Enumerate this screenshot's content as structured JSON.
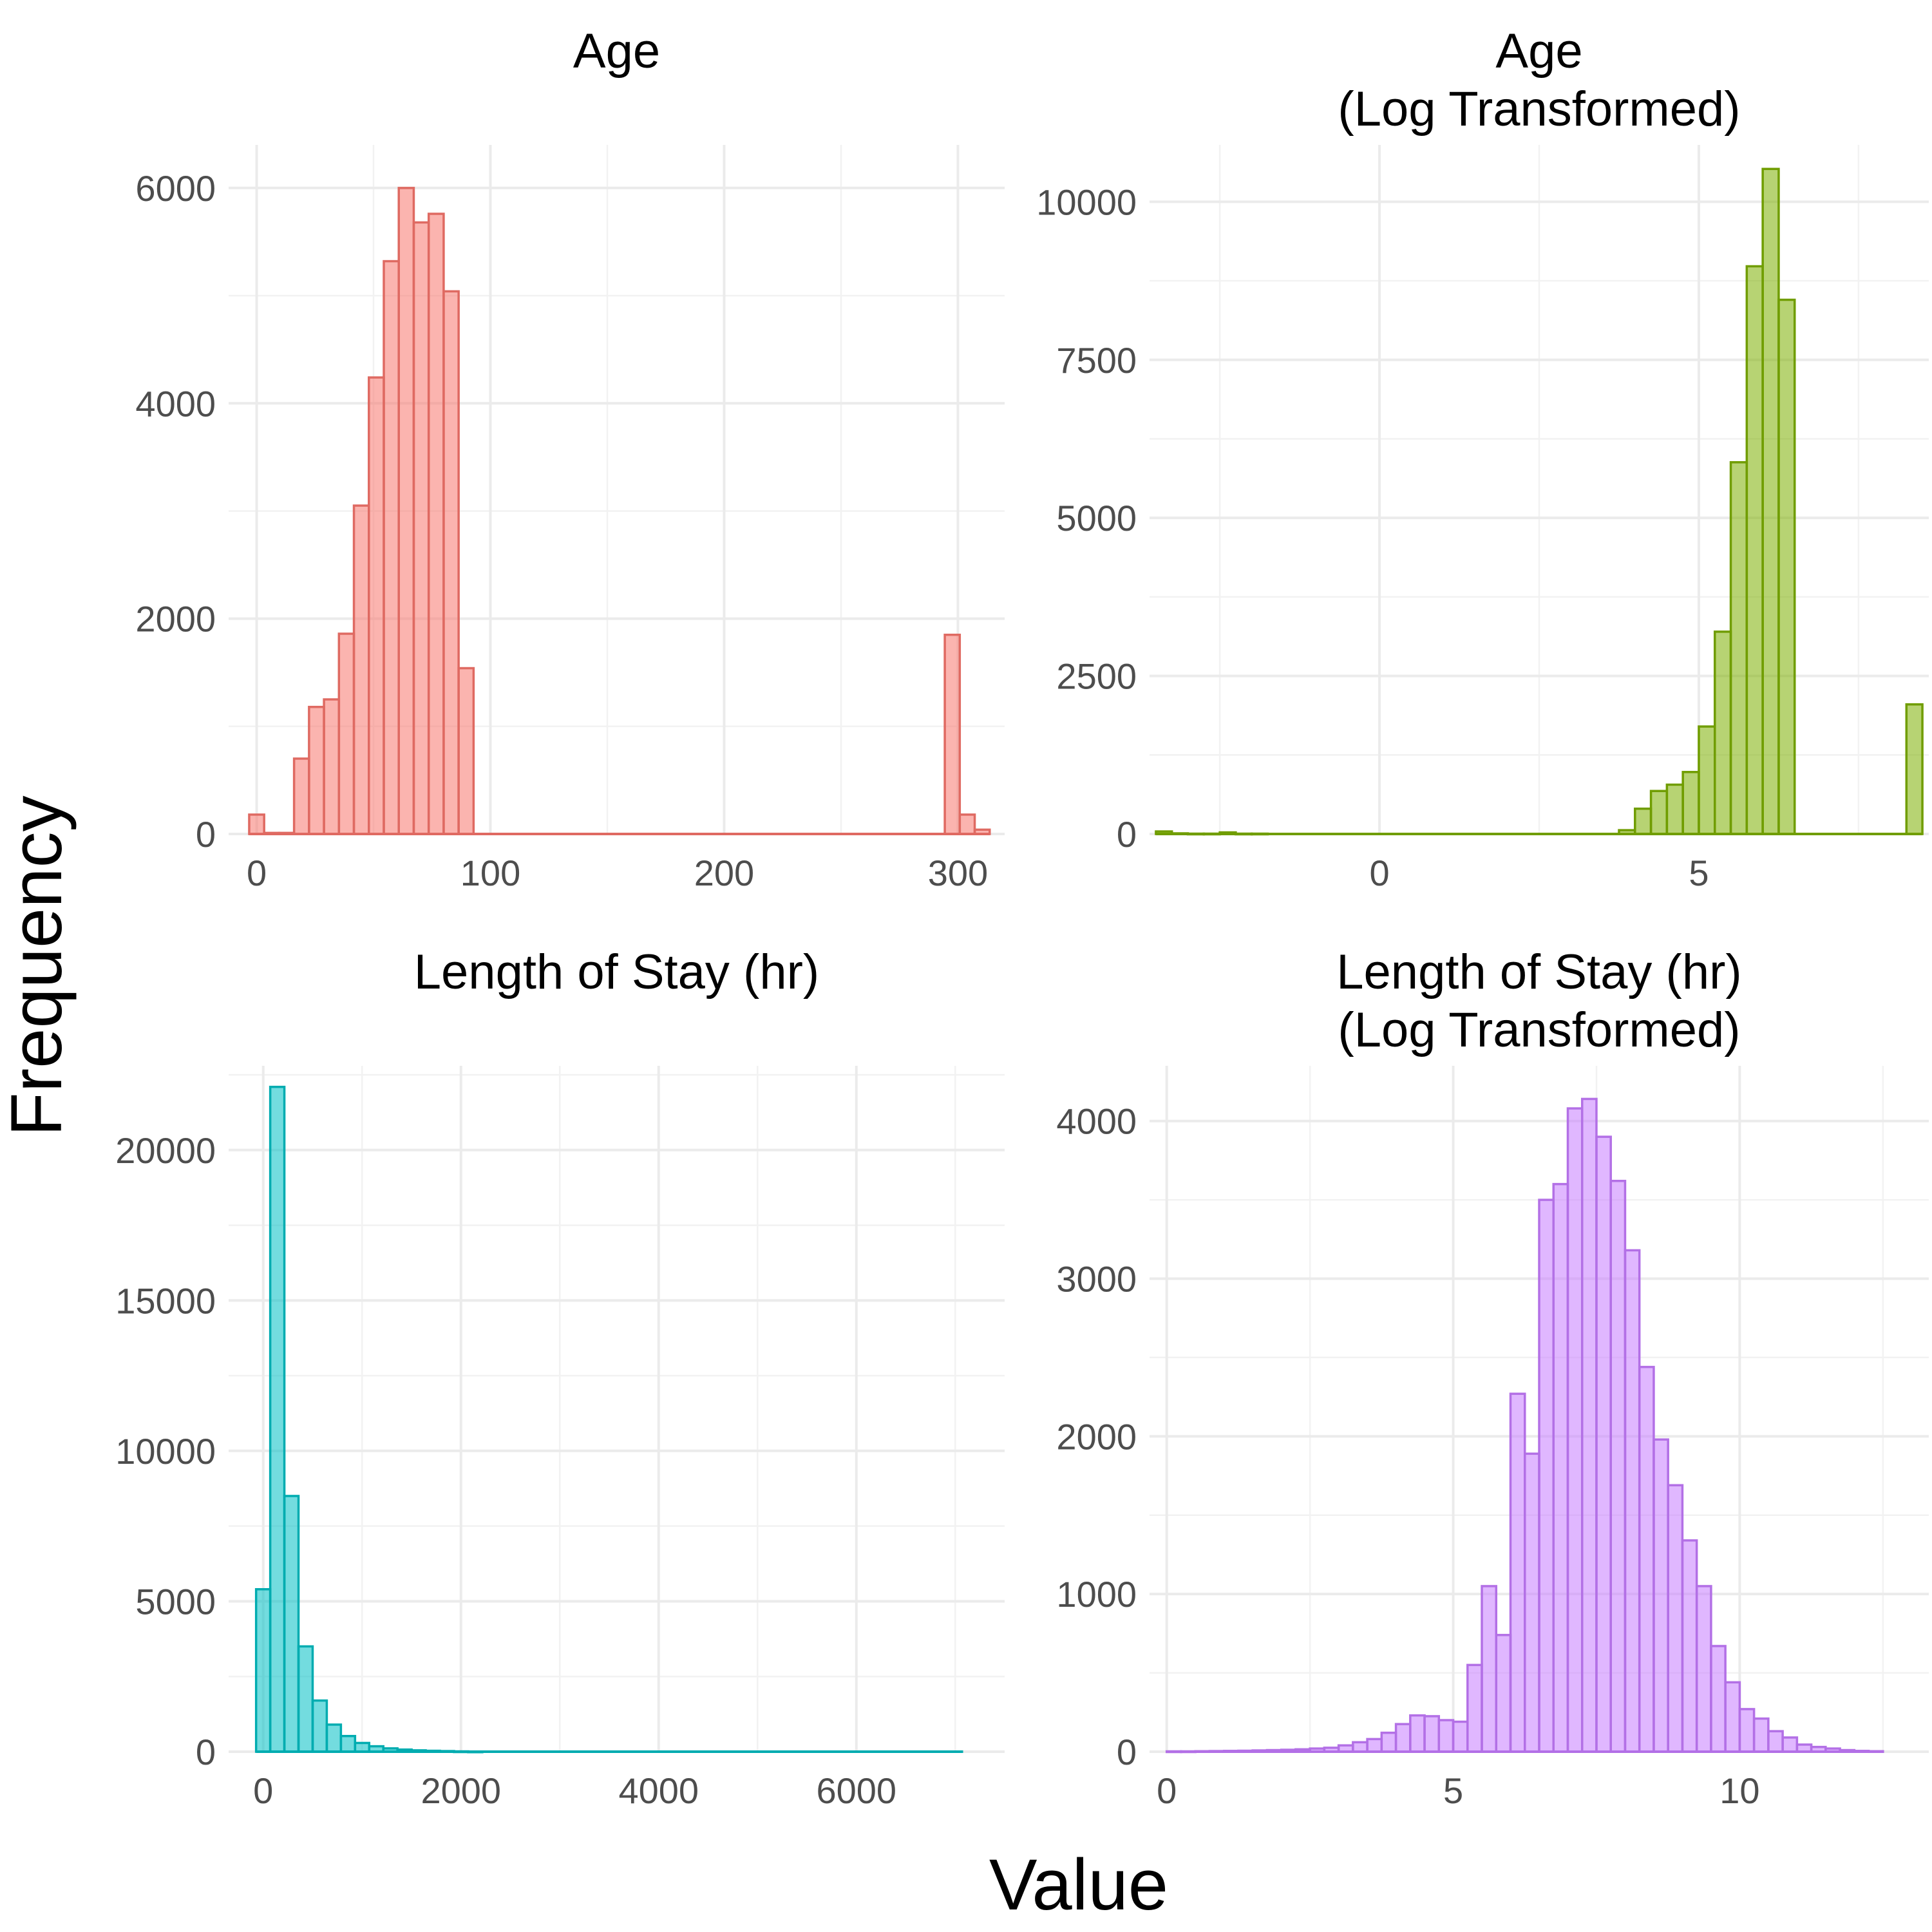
{
  "figure": {
    "xlabel": "Value",
    "ylabel": "Frequency"
  },
  "chart_data": [
    {
      "type": "bar",
      "title": "Age",
      "title_lines": [
        "Age"
      ],
      "fill": "#F8766D",
      "xlim": [
        -12,
        320
      ],
      "ylim": [
        0,
        6400
      ],
      "xticks": [
        0,
        100,
        200,
        300
      ],
      "yticks": [
        0,
        2000,
        4000,
        6000
      ],
      "bin_width": 6.4,
      "bins_start": [
        -3.2,
        3.2,
        9.6,
        16.0,
        22.4,
        28.8,
        35.2,
        41.6,
        48.0,
        54.4,
        60.8,
        67.2,
        73.6,
        80.0,
        86.4,
        92.8,
        294.4,
        300.8,
        307.2
      ],
      "values": [
        180,
        10,
        10,
        700,
        1180,
        1250,
        1860,
        3050,
        4240,
        5320,
        6000,
        5680,
        5760,
        5040,
        1540,
        0,
        1850,
        180,
        40
      ]
    },
    {
      "type": "bar",
      "title": "Age (Log Transformed)",
      "title_lines": [
        "Age",
        "(Log Transformed)"
      ],
      "fill": "#7CAE00",
      "xlim": [
        -3.6,
        8.6
      ],
      "ylim": [
        0,
        10900
      ],
      "xticks": [
        0,
        5
      ],
      "yticks": [
        0,
        2500,
        5000,
        7500,
        10000
      ],
      "bin_width": 0.25,
      "bins_start": [
        -3.5,
        -3.25,
        -3.0,
        -2.75,
        -2.5,
        -2.25,
        -2.0,
        3.75,
        4.0,
        4.25,
        4.5,
        4.75,
        5.0,
        5.25,
        5.5,
        5.75,
        6.0,
        6.25,
        6.5,
        8.0,
        8.25
      ],
      "values": [
        40,
        10,
        5,
        5,
        25,
        5,
        5,
        60,
        400,
        680,
        780,
        980,
        1700,
        3200,
        5880,
        8980,
        10520,
        8450,
        0,
        0,
        2050
      ]
    },
    {
      "type": "bar",
      "title": "Length of Stay (hr)",
      "title_lines": [
        "Length of Stay (hr)"
      ],
      "fill": "#00BFC4",
      "xlim": [
        -350,
        7500
      ],
      "ylim": [
        0,
        22800
      ],
      "xticks": [
        0,
        2000,
        4000,
        6000
      ],
      "yticks": [
        0,
        5000,
        10000,
        15000,
        20000
      ],
      "bin_width": 143,
      "bins_start": [
        -72,
        71,
        214,
        357,
        500,
        643,
        786,
        929,
        1072,
        1215,
        1358,
        1501,
        1644,
        1787,
        1930,
        2073
      ],
      "values": [
        5400,
        22100,
        8500,
        3500,
        1700,
        900,
        520,
        290,
        180,
        110,
        70,
        45,
        30,
        20,
        10,
        5
      ],
      "baseline_end": 7080
    },
    {
      "type": "bar",
      "title": "Length of Stay (hr) (Log Transformed)",
      "title_lines": [
        "Length of Stay (hr)",
        "(Log Transformed)"
      ],
      "fill": "#C77CFF",
      "xlim": [
        -0.3,
        13.3
      ],
      "ylim": [
        0,
        4350
      ],
      "xticks": [
        0,
        5,
        10
      ],
      "yticks": [
        0,
        1000,
        2000,
        3000,
        4000
      ],
      "bin_width": 0.25,
      "bins_start": [
        0.0,
        0.25,
        0.5,
        0.75,
        1.0,
        1.25,
        1.5,
        1.75,
        2.0,
        2.25,
        2.5,
        2.75,
        3.0,
        3.25,
        3.5,
        3.75,
        4.0,
        4.25,
        4.5,
        4.75,
        5.0,
        5.25,
        5.5,
        5.75,
        6.0,
        6.25,
        6.5,
        6.75,
        7.0,
        7.25,
        7.5,
        7.75,
        8.0,
        8.25,
        8.5,
        8.75,
        9.0,
        9.25,
        9.5,
        9.75,
        10.0,
        10.25,
        10.5,
        10.75,
        11.0,
        11.25,
        11.5,
        11.75,
        12.0,
        12.25
      ],
      "values": [
        2,
        2,
        3,
        4,
        5,
        6,
        8,
        10,
        12,
        15,
        20,
        25,
        40,
        60,
        80,
        120,
        175,
        230,
        225,
        200,
        190,
        550,
        1050,
        740,
        2270,
        1890,
        3500,
        3600,
        4080,
        4140,
        3900,
        3620,
        3180,
        2440,
        1980,
        1690,
        1340,
        1050,
        670,
        440,
        270,
        210,
        130,
        90,
        45,
        30,
        20,
        10,
        5,
        3
      ]
    }
  ]
}
